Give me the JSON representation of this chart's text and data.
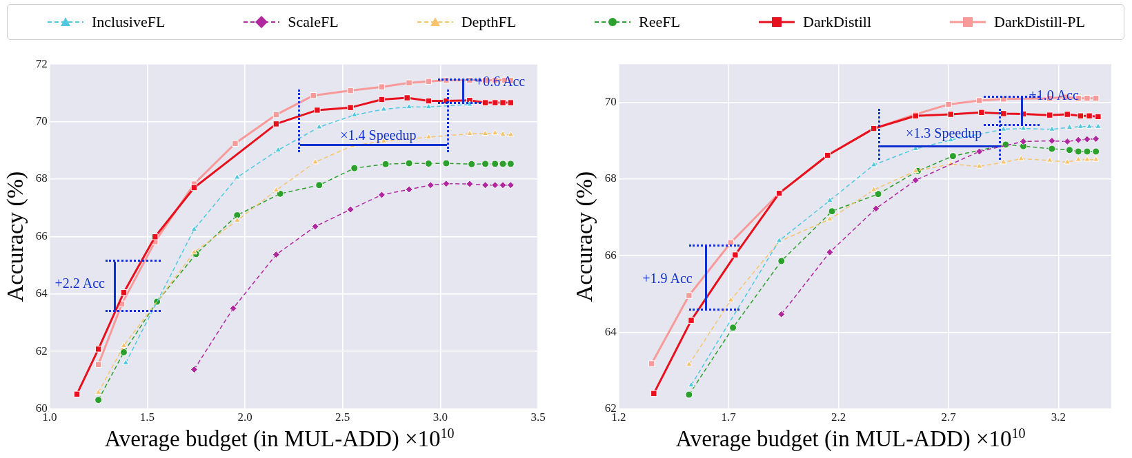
{
  "chart_data": [
    {
      "type": "line",
      "xlabel": "Average budget (in MUL-ADD) ×10$^{10}$",
      "ylabel": "Accuracy (%)",
      "xlim": [
        1.0,
        3.5
      ],
      "xticks": [
        {
          "value": 1.0,
          "label": "1.0"
        },
        {
          "value": 1.5,
          "label": "1.5"
        },
        {
          "value": 2.0,
          "label": "2.0"
        },
        {
          "value": 2.5,
          "label": "2.5"
        },
        {
          "value": 3.0,
          "label": "3.0"
        },
        {
          "value": 3.5,
          "label": "3.5"
        }
      ],
      "ylim": [
        60,
        72
      ],
      "yticks": [
        60,
        62,
        64,
        66,
        68,
        70,
        72
      ],
      "grid": true,
      "legend": "top",
      "series": [
        {
          "name": "InclusiveFL",
          "color": "#4fc8e0",
          "marker": "triangle",
          "line_style": "dashed",
          "x": [
            1.39,
            1.74,
            1.96,
            2.17,
            2.38,
            2.56,
            2.71,
            2.84,
            2.94,
            3.15
          ],
          "values": [
            61.6,
            66.25,
            68.06,
            69.01,
            69.81,
            70.23,
            70.43,
            70.51,
            70.51,
            70.6
          ]
        },
        {
          "name": "ScaleFL",
          "color": "#b0279f",
          "marker": "diamond",
          "line_style": "dashed",
          "x": [
            1.74,
            1.94,
            2.16,
            2.36,
            2.54,
            2.7,
            2.84,
            2.95,
            3.03,
            3.15,
            3.23,
            3.28,
            3.32,
            3.36
          ],
          "values": [
            61.37,
            63.5,
            65.37,
            66.35,
            66.94,
            67.45,
            67.64,
            67.79,
            67.84,
            67.83,
            67.79,
            67.79,
            67.79,
            67.79
          ]
        },
        {
          "name": "DepthFL",
          "color": "#f7c46c",
          "marker": "triangle",
          "line_style": "dashed",
          "x": [
            1.25,
            1.38,
            1.74,
            1.96,
            2.16,
            2.36,
            2.55,
            2.71,
            2.94,
            3.15,
            3.23,
            3.28,
            3.32,
            3.36
          ],
          "values": [
            60.57,
            62.2,
            65.45,
            66.56,
            67.61,
            68.59,
            69.16,
            69.32,
            69.46,
            69.58,
            69.58,
            69.6,
            69.56,
            69.54
          ]
        },
        {
          "name": "ReeFL",
          "color": "#2ca02c",
          "marker": "circle",
          "line_style": "dashed",
          "x": [
            1.25,
            1.38,
            1.55,
            1.75,
            1.96,
            2.18,
            2.38,
            2.56,
            2.72,
            2.84,
            2.94,
            3.03,
            3.16,
            3.23,
            3.28,
            3.32,
            3.36
          ],
          "values": [
            60.31,
            61.97,
            63.73,
            65.39,
            66.74,
            67.49,
            67.79,
            68.38,
            68.52,
            68.55,
            68.54,
            68.55,
            68.52,
            68.53,
            68.53,
            68.53,
            68.53
          ]
        },
        {
          "name": "DarkDistill",
          "color": "#e8101c",
          "marker": "square",
          "line_style": "solid",
          "x": [
            1.14,
            1.25,
            1.38,
            1.54,
            1.74,
            2.16,
            2.37,
            2.54,
            2.7,
            2.83,
            2.94,
            3.03,
            3.15,
            3.23,
            3.28,
            3.32,
            3.36
          ],
          "values": [
            60.51,
            62.08,
            64.05,
            65.99,
            67.7,
            69.92,
            70.4,
            70.49,
            70.77,
            70.83,
            70.72,
            70.72,
            70.74,
            70.66,
            70.66,
            70.66,
            70.66
          ]
        },
        {
          "name": "DarkDistill-PL",
          "color": "#f89a9a",
          "marker": "square",
          "line_style": "solid",
          "x": [
            1.25,
            1.37,
            1.54,
            1.74,
            1.95,
            2.16,
            2.35,
            2.54,
            2.7,
            2.84,
            2.94,
            3.03,
            3.15,
            3.23,
            3.28,
            3.33,
            3.36
          ],
          "values": [
            61.54,
            63.65,
            65.82,
            67.83,
            69.24,
            70.24,
            70.91,
            71.08,
            71.21,
            71.35,
            71.4,
            71.44,
            71.44,
            71.44,
            71.44,
            71.44,
            71.44
          ]
        }
      ],
      "annotations": [
        "+2.2 Acc",
        "×1.4 Speedup",
        {
          "text": "+0.6 Acc",
          "x": 3.15,
          "y": 70.74
        }
      ]
    },
    {
      "type": "line",
      "xlabel": "Average budget (in MUL-ADD) ×10$^{10}$",
      "ylabel": "Accuracy (%)",
      "xlim": [
        1.2,
        3.44
      ],
      "xticks": [
        {
          "value": 1.2,
          "label": "1.2"
        },
        {
          "value": 1.7,
          "label": "1.7"
        },
        {
          "value": 2.2,
          "label": "2.2"
        },
        {
          "value": 2.7,
          "label": "2.7"
        },
        {
          "value": 3.2,
          "label": "3.2"
        }
      ],
      "ylim": [
        62,
        71
      ],
      "yticks": [
        62,
        64,
        66,
        68,
        70
      ],
      "grid": true,
      "series": [
        {
          "color": "#4fc8e0",
          "marker": "triangle",
          "line_style": "dashed",
          "x": [
            1.53,
            1.93,
            2.16,
            2.36,
            2.55,
            2.71,
            2.95,
            3.04,
            3.17,
            3.25,
            3.3,
            3.34,
            3.38
          ],
          "values": [
            62.62,
            66.39,
            67.44,
            68.37,
            68.79,
            69.02,
            69.3,
            69.32,
            69.3,
            69.35,
            69.37,
            69.37,
            69.37
          ]
        },
        {
          "color": "#b0279f",
          "marker": "diamond",
          "line_style": "dashed",
          "x": [
            1.94,
            2.16,
            2.37,
            2.55,
            2.84,
            3.04,
            3.17,
            3.24,
            3.29,
            3.33,
            3.37
          ],
          "values": [
            64.47,
            66.09,
            67.23,
            67.97,
            68.72,
            68.98,
            69.0,
            68.98,
            69.02,
            69.04,
            69.05
          ]
        },
        {
          "color": "#f7c46c",
          "marker": "triangle",
          "line_style": "dashed",
          "x": [
            1.52,
            1.71,
            1.93,
            2.16,
            2.36,
            2.55,
            2.71,
            2.84,
            2.95,
            3.03,
            3.16,
            3.24,
            3.29,
            3.33,
            3.37
          ],
          "values": [
            63.16,
            64.84,
            66.37,
            66.95,
            67.72,
            68.21,
            68.39,
            68.33,
            68.44,
            68.53,
            68.49,
            68.44,
            68.51,
            68.51,
            68.51
          ]
        },
        {
          "color": "#2ca02c",
          "marker": "circle",
          "line_style": "dashed",
          "x": [
            1.52,
            1.72,
            1.94,
            2.17,
            2.38,
            2.56,
            2.72,
            2.96,
            3.04,
            3.17,
            3.25,
            3.29,
            3.33,
            3.37
          ],
          "values": [
            62.37,
            64.12,
            65.86,
            67.16,
            67.61,
            68.21,
            68.6,
            68.9,
            68.86,
            68.79,
            68.76,
            68.72,
            68.72,
            68.72
          ]
        },
        {
          "color": "#e8101c",
          "marker": "square",
          "line_style": "solid",
          "x": [
            1.36,
            1.53,
            1.73,
            1.93,
            2.15,
            2.36,
            2.55,
            2.71,
            2.85,
            2.95,
            3.04,
            3.16,
            3.24,
            3.3,
            3.34,
            3.38
          ],
          "values": [
            62.4,
            64.31,
            66.02,
            67.63,
            68.62,
            69.32,
            69.65,
            69.69,
            69.74,
            69.71,
            69.7,
            69.67,
            69.69,
            69.65,
            69.65,
            69.63
          ]
        },
        {
          "color": "#f89a9a",
          "marker": "square",
          "line_style": "solid",
          "x": [
            1.35,
            1.52,
            1.71,
            1.93,
            2.15,
            2.36,
            2.55,
            2.7,
            2.84,
            2.95,
            3.16,
            3.23,
            3.29,
            3.33,
            3.37
          ],
          "values": [
            63.18,
            64.96,
            66.34,
            67.63,
            68.62,
            69.32,
            69.69,
            69.95,
            70.05,
            70.09,
            70.11,
            70.14,
            70.11,
            70.11,
            70.11
          ]
        }
      ],
      "annotations": [
        "+1.9 Acc",
        "×1.3 Speedup",
        {
          "text": "+1.0 Acc",
          "x": 3.04,
          "y": 69.7
        }
      ]
    }
  ]
}
